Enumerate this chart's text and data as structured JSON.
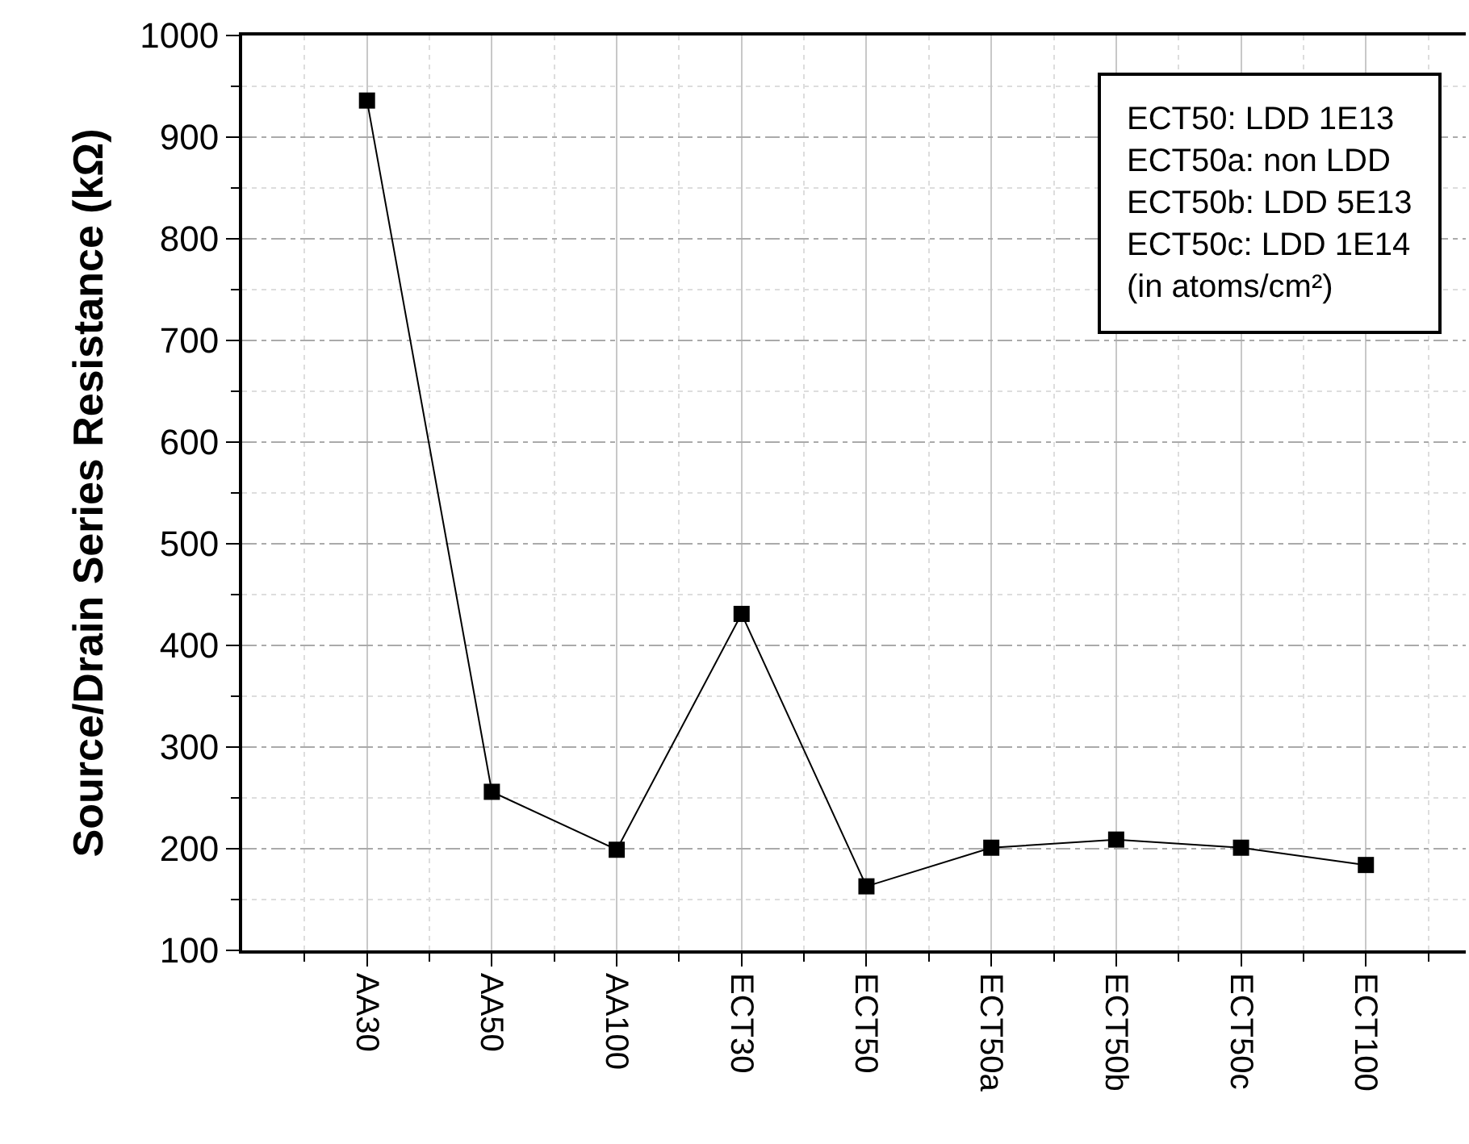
{
  "chart_data": {
    "type": "line",
    "ylabel": "Source/Drain Series Resistance (kΩ)",
    "categories": [
      "AA30",
      "AA50",
      "AA100",
      "ECT30",
      "ECT50",
      "ECT50a",
      "ECT50b",
      "ECT50c",
      "ECT100"
    ],
    "series": [
      {
        "color": "#000000",
        "values": [
          936,
          256,
          199,
          431,
          163,
          201,
          209,
          201,
          184
        ]
      }
    ],
    "ylim": [
      100,
      1000
    ],
    "yticks": [
      100,
      200,
      300,
      400,
      500,
      600,
      700,
      800,
      900,
      1000
    ],
    "grid": true,
    "marker": "square",
    "line_style": "solid",
    "annotations": [
      "ECT50: LDD 1E13\nECT50a: non LDD\nECT50b: LDD 5E13\nECT50c: LDD 1E14\n(in atoms/cm²)"
    ]
  }
}
